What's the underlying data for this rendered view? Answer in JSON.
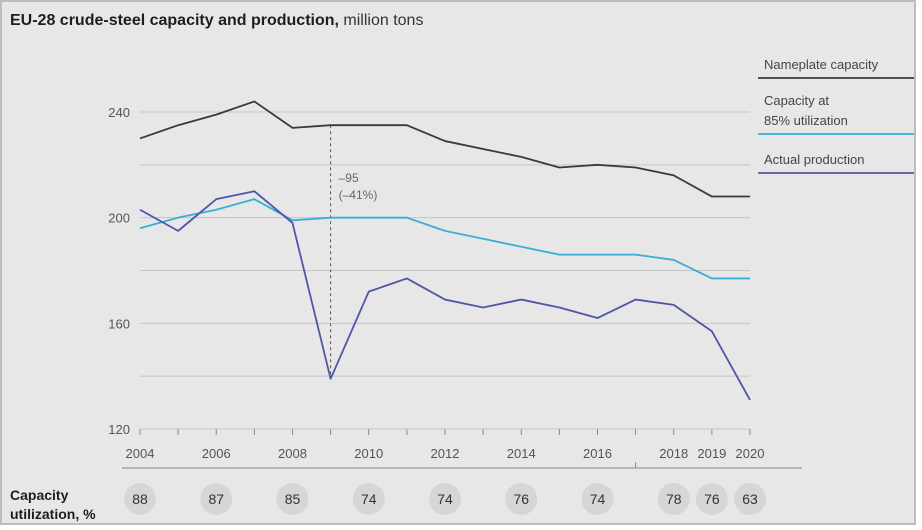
{
  "title": {
    "bold": "EU-28 crude-steel capacity and production,",
    "light": " million tons"
  },
  "utilization_label": [
    "Capacity",
    "utilization, %"
  ],
  "utilization": [
    {
      "year": 2004,
      "value": "88"
    },
    {
      "year": 2006,
      "value": "87"
    },
    {
      "year": 2008,
      "value": "85"
    },
    {
      "year": 2010,
      "value": "74"
    },
    {
      "year": 2012,
      "value": "74"
    },
    {
      "year": 2014,
      "value": "76"
    },
    {
      "year": 2016,
      "value": "74"
    },
    {
      "year": 2018,
      "value": "78"
    },
    {
      "year": 2019,
      "value": "76"
    },
    {
      "year": 2020,
      "value": "63"
    }
  ],
  "annotation": {
    "year": 2009,
    "lines": [
      "–95",
      "(–41%)"
    ]
  },
  "colors": {
    "nameplate": "#3a3a3a",
    "capacity85": "#39aed6",
    "production": "#4f55a8",
    "grid": "#c5c5c5"
  },
  "chart_data": {
    "type": "line",
    "title": "EU-28 crude-steel capacity and production, million tons",
    "xlabel": "",
    "ylabel": "",
    "x": [
      2004,
      2005,
      2006,
      2007,
      2008,
      2009,
      2010,
      2011,
      2012,
      2013,
      2014,
      2015,
      2016,
      2017,
      2018,
      2019,
      2020
    ],
    "x_tick_labels": [
      "2004",
      "2006",
      "2008",
      "2010",
      "2012",
      "2014",
      "2016",
      "2018",
      "2019",
      "2020"
    ],
    "y_ticks": [
      120,
      160,
      200,
      240
    ],
    "ylim": [
      120,
      250
    ],
    "legend_position": "right",
    "series": [
      {
        "name": "Nameplate capacity",
        "color_key": "nameplate",
        "values": [
          230,
          235,
          239,
          244,
          234,
          235,
          235,
          235,
          229,
          226,
          223,
          219,
          220,
          219,
          216,
          208,
          208
        ]
      },
      {
        "name": "Capacity at 85% utilization",
        "color_key": "capacity85",
        "values": [
          196,
          200,
          203,
          207,
          199,
          200,
          200,
          200,
          195,
          192,
          189,
          186,
          186,
          186,
          184,
          177,
          177
        ]
      },
      {
        "name": "Actual production",
        "color_key": "production",
        "values": [
          203,
          195,
          207,
          210,
          198,
          139,
          172,
          177,
          169,
          166,
          169,
          166,
          162,
          169,
          167,
          157,
          131
        ]
      }
    ]
  }
}
